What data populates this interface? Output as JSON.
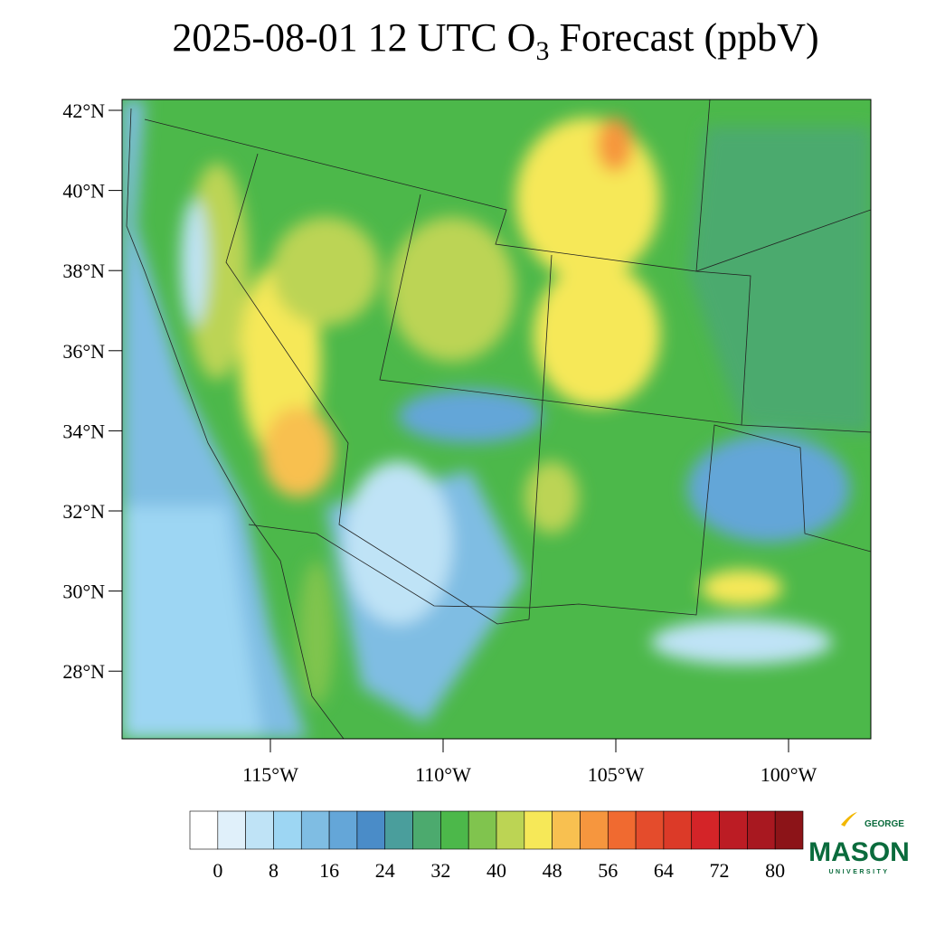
{
  "title": {
    "main": "2025-08-01 12 UTC O",
    "sub": "3",
    "rest": " Forecast (ppbV)"
  },
  "lat_ticks": [
    {
      "value": 42,
      "label": "42°N"
    },
    {
      "value": 40,
      "label": "40°N"
    },
    {
      "value": 38,
      "label": "38°N"
    },
    {
      "value": 36,
      "label": "36°N"
    },
    {
      "value": 34,
      "label": "34°N"
    },
    {
      "value": 32,
      "label": "32°N"
    },
    {
      "value": 30,
      "label": "30°N"
    },
    {
      "value": 28,
      "label": "28°N"
    }
  ],
  "lon_ticks": [
    {
      "value": -115,
      "label": "115°W"
    },
    {
      "value": -110,
      "label": "110°W"
    },
    {
      "value": -105,
      "label": "105°W"
    },
    {
      "value": -100,
      "label": "100°W"
    }
  ],
  "colorbar": {
    "ticks": [
      0,
      8,
      16,
      24,
      32,
      40,
      48,
      56,
      64,
      72,
      80
    ],
    "colors": [
      "#ffffff",
      "#e0f0fa",
      "#bfe3f6",
      "#9dd6f3",
      "#7fbde3",
      "#64a6d8",
      "#4a8cc8",
      "#4a9e9c",
      "#4caa6e",
      "#4cb84a",
      "#80c44e",
      "#bcd454",
      "#f6e858",
      "#f8c050",
      "#f6963e",
      "#f06a30",
      "#e44c2c",
      "#dc3a28",
      "#d42428",
      "#bc1c24",
      "#a81820",
      "#8c1418"
    ]
  },
  "logo": {
    "top": "GEORGE",
    "main": "MASON",
    "bottom": "UNIVERSITY"
  }
}
